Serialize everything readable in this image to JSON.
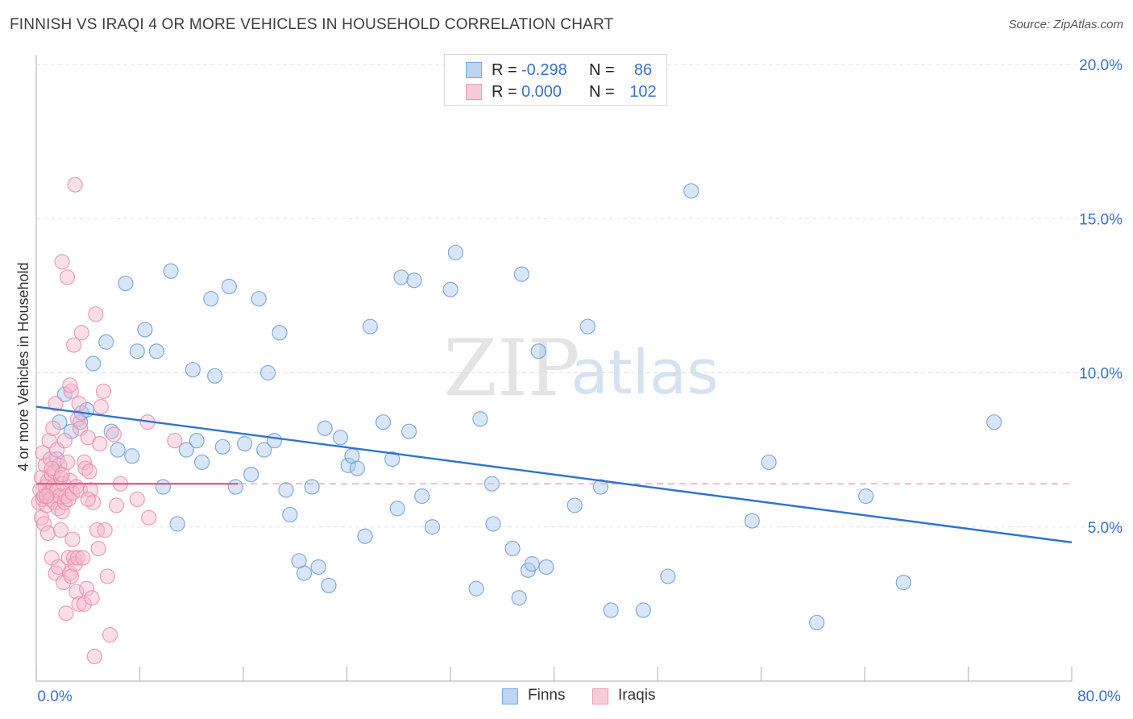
{
  "title": "FINNISH VS IRAQI 4 OR MORE VEHICLES IN HOUSEHOLD CORRELATION CHART",
  "source": "Source: ZipAtlas.com",
  "watermark": {
    "zip": "ZIP",
    "atlas": "atlas"
  },
  "legend": {
    "rows": [
      {
        "r_label": "R =",
        "r_value": "-0.298",
        "n_label": "N =",
        "n_value": "86",
        "color": "#a9c8ef"
      },
      {
        "r_label": "R =",
        "r_value": "0.000",
        "n_label": "N =",
        "n_value": "102",
        "color": "#f6b9cb"
      }
    ]
  },
  "bottom_legend": [
    {
      "label": "Finns",
      "color": "#a9c8ef"
    },
    {
      "label": "Iraqis",
      "color": "#f6b9cb"
    }
  ],
  "chart_data": {
    "type": "scatter",
    "title": "FINNISH VS IRAQI 4 OR MORE VEHICLES IN HOUSEHOLD CORRELATION CHART",
    "xlabel": "",
    "ylabel": "4 or more Vehicles in Household",
    "xlim": [
      0,
      80
    ],
    "ylim": [
      0,
      20
    ],
    "x_tick_labels": [
      "0.0%",
      "80.0%"
    ],
    "y_ticks": [
      5,
      10,
      15,
      20
    ],
    "y_tick_labels": [
      "5.0%",
      "10.0%",
      "15.0%",
      "20.0%"
    ],
    "grid": true,
    "legend_position": "top-center",
    "series": [
      {
        "name": "Finns",
        "color": "#6f9fdc",
        "fill": "#a9c8ef",
        "trend": {
          "x": [
            0,
            80
          ],
          "y": [
            8.9,
            4.5
          ],
          "color": "#2f73d4"
        },
        "points": [
          [
            1.6,
            7.2
          ],
          [
            1.8,
            8.4
          ],
          [
            2.2,
            9.3
          ],
          [
            2.7,
            8.1
          ],
          [
            3.4,
            8.4
          ],
          [
            3.5,
            8.7
          ],
          [
            3.9,
            8.8
          ],
          [
            4.4,
            10.3
          ],
          [
            5.4,
            11.0
          ],
          [
            5.8,
            8.1
          ],
          [
            6.3,
            7.5
          ],
          [
            6.9,
            12.9
          ],
          [
            7.4,
            7.3
          ],
          [
            7.8,
            10.7
          ],
          [
            8.4,
            11.4
          ],
          [
            9.3,
            10.7
          ],
          [
            9.8,
            6.3
          ],
          [
            10.4,
            13.3
          ],
          [
            10.9,
            5.1
          ],
          [
            11.6,
            7.5
          ],
          [
            12.1,
            10.1
          ],
          [
            12.4,
            7.8
          ],
          [
            12.8,
            7.1
          ],
          [
            13.5,
            12.4
          ],
          [
            13.8,
            9.9
          ],
          [
            14.4,
            7.6
          ],
          [
            14.9,
            12.8
          ],
          [
            15.4,
            6.3
          ],
          [
            16.1,
            7.7
          ],
          [
            16.6,
            6.7
          ],
          [
            17.2,
            12.4
          ],
          [
            17.6,
            7.5
          ],
          [
            17.9,
            10.0
          ],
          [
            18.4,
            7.8
          ],
          [
            18.8,
            11.3
          ],
          [
            19.3,
            6.2
          ],
          [
            19.6,
            5.4
          ],
          [
            20.3,
            3.9
          ],
          [
            20.7,
            3.5
          ],
          [
            21.3,
            6.3
          ],
          [
            21.8,
            3.7
          ],
          [
            22.3,
            8.2
          ],
          [
            22.6,
            3.1
          ],
          [
            23.5,
            7.9
          ],
          [
            24.1,
            7.0
          ],
          [
            24.4,
            7.3
          ],
          [
            24.8,
            6.9
          ],
          [
            25.4,
            4.7
          ],
          [
            25.8,
            11.5
          ],
          [
            26.8,
            8.4
          ],
          [
            27.5,
            7.2
          ],
          [
            27.9,
            5.6
          ],
          [
            28.2,
            13.1
          ],
          [
            28.8,
            8.1
          ],
          [
            29.2,
            13.0
          ],
          [
            29.8,
            6.0
          ],
          [
            30.6,
            5.0
          ],
          [
            32.0,
            12.7
          ],
          [
            32.4,
            13.9
          ],
          [
            34.0,
            3.0
          ],
          [
            34.3,
            8.5
          ],
          [
            35.2,
            6.4
          ],
          [
            35.3,
            5.1
          ],
          [
            36.8,
            4.3
          ],
          [
            37.3,
            2.7
          ],
          [
            37.5,
            13.2
          ],
          [
            38.0,
            3.6
          ],
          [
            38.3,
            3.8
          ],
          [
            38.8,
            10.7
          ],
          [
            39.4,
            3.7
          ],
          [
            41.6,
            5.7
          ],
          [
            42.6,
            11.5
          ],
          [
            43.6,
            6.3
          ],
          [
            44.4,
            2.3
          ],
          [
            46.9,
            2.3
          ],
          [
            48.8,
            3.4
          ],
          [
            50.6,
            15.9
          ],
          [
            55.3,
            5.2
          ],
          [
            56.6,
            7.1
          ],
          [
            60.3,
            1.9
          ],
          [
            64.1,
            6.0
          ],
          [
            67.0,
            3.2
          ],
          [
            74.0,
            8.4
          ]
        ]
      },
      {
        "name": "Iraqis",
        "color": "#e98eaa",
        "fill": "#f6b9cb",
        "trend": {
          "x": [
            0,
            15.6
          ],
          "y": [
            6.4,
            6.4
          ],
          "color": "#e45d8a",
          "reference_y": 6.4
        },
        "points": [
          [
            0.2,
            5.8
          ],
          [
            0.3,
            6.2
          ],
          [
            0.4,
            5.3
          ],
          [
            0.4,
            6.6
          ],
          [
            0.5,
            7.4
          ],
          [
            0.5,
            5.9
          ],
          [
            0.6,
            5.1
          ],
          [
            0.6,
            6.0
          ],
          [
            0.7,
            6.3
          ],
          [
            0.7,
            7.0
          ],
          [
            0.8,
            5.7
          ],
          [
            0.9,
            4.8
          ],
          [
            0.9,
            6.5
          ],
          [
            1.0,
            7.8
          ],
          [
            1.0,
            6.1
          ],
          [
            1.1,
            5.9
          ],
          [
            1.1,
            7.2
          ],
          [
            1.2,
            6.7
          ],
          [
            1.2,
            4.0
          ],
          [
            1.3,
            8.2
          ],
          [
            1.3,
            6.3
          ],
          [
            1.4,
            5.8
          ],
          [
            1.4,
            6.8
          ],
          [
            1.5,
            3.5
          ],
          [
            1.5,
            9.0
          ],
          [
            1.6,
            7.5
          ],
          [
            1.6,
            6.2
          ],
          [
            1.7,
            5.6
          ],
          [
            1.7,
            3.7
          ],
          [
            1.8,
            6.0
          ],
          [
            1.8,
            7.0
          ],
          [
            1.9,
            4.9
          ],
          [
            1.9,
            6.6
          ],
          [
            2.0,
            13.6
          ],
          [
            2.0,
            5.5
          ],
          [
            2.1,
            3.2
          ],
          [
            2.1,
            6.4
          ],
          [
            2.2,
            7.8
          ],
          [
            2.2,
            5.8
          ],
          [
            2.3,
            2.2
          ],
          [
            2.3,
            6.0
          ],
          [
            2.4,
            13.1
          ],
          [
            2.4,
            7.1
          ],
          [
            2.5,
            4.0
          ],
          [
            2.5,
            5.9
          ],
          [
            2.6,
            3.5
          ],
          [
            2.6,
            6.5
          ],
          [
            2.7,
            9.4
          ],
          [
            2.7,
            3.4
          ],
          [
            2.8,
            4.6
          ],
          [
            2.8,
            6.1
          ],
          [
            2.9,
            10.9
          ],
          [
            2.9,
            4.0
          ],
          [
            3.0,
            16.1
          ],
          [
            3.0,
            3.8
          ],
          [
            3.1,
            2.9
          ],
          [
            3.1,
            6.3
          ],
          [
            3.2,
            8.5
          ],
          [
            3.2,
            4.0
          ],
          [
            3.3,
            2.5
          ],
          [
            3.4,
            6.2
          ],
          [
            3.4,
            8.2
          ],
          [
            3.5,
            11.3
          ],
          [
            3.6,
            4.0
          ],
          [
            3.7,
            7.1
          ],
          [
            3.7,
            2.5
          ],
          [
            3.8,
            6.9
          ],
          [
            3.9,
            3.0
          ],
          [
            4.0,
            7.9
          ],
          [
            4.1,
            6.8
          ],
          [
            4.2,
            6.2
          ],
          [
            4.3,
            2.7
          ],
          [
            4.4,
            5.8
          ],
          [
            4.5,
            0.8
          ],
          [
            4.6,
            11.9
          ],
          [
            4.7,
            4.9
          ],
          [
            4.8,
            4.3
          ],
          [
            4.9,
            7.7
          ],
          [
            5.0,
            8.9
          ],
          [
            5.2,
            9.4
          ],
          [
            5.3,
            4.9
          ],
          [
            5.5,
            3.4
          ],
          [
            5.7,
            1.5
          ],
          [
            6.0,
            8.0
          ],
          [
            6.2,
            5.7
          ],
          [
            6.5,
            6.4
          ],
          [
            7.8,
            5.9
          ],
          [
            8.6,
            8.4
          ],
          [
            8.7,
            5.3
          ],
          [
            10.7,
            7.8
          ],
          [
            1.2,
            6.9
          ],
          [
            0.8,
            6.0
          ],
          [
            2.0,
            6.7
          ],
          [
            2.6,
            9.6
          ],
          [
            3.3,
            9.0
          ],
          [
            4.0,
            5.9
          ]
        ]
      }
    ]
  }
}
